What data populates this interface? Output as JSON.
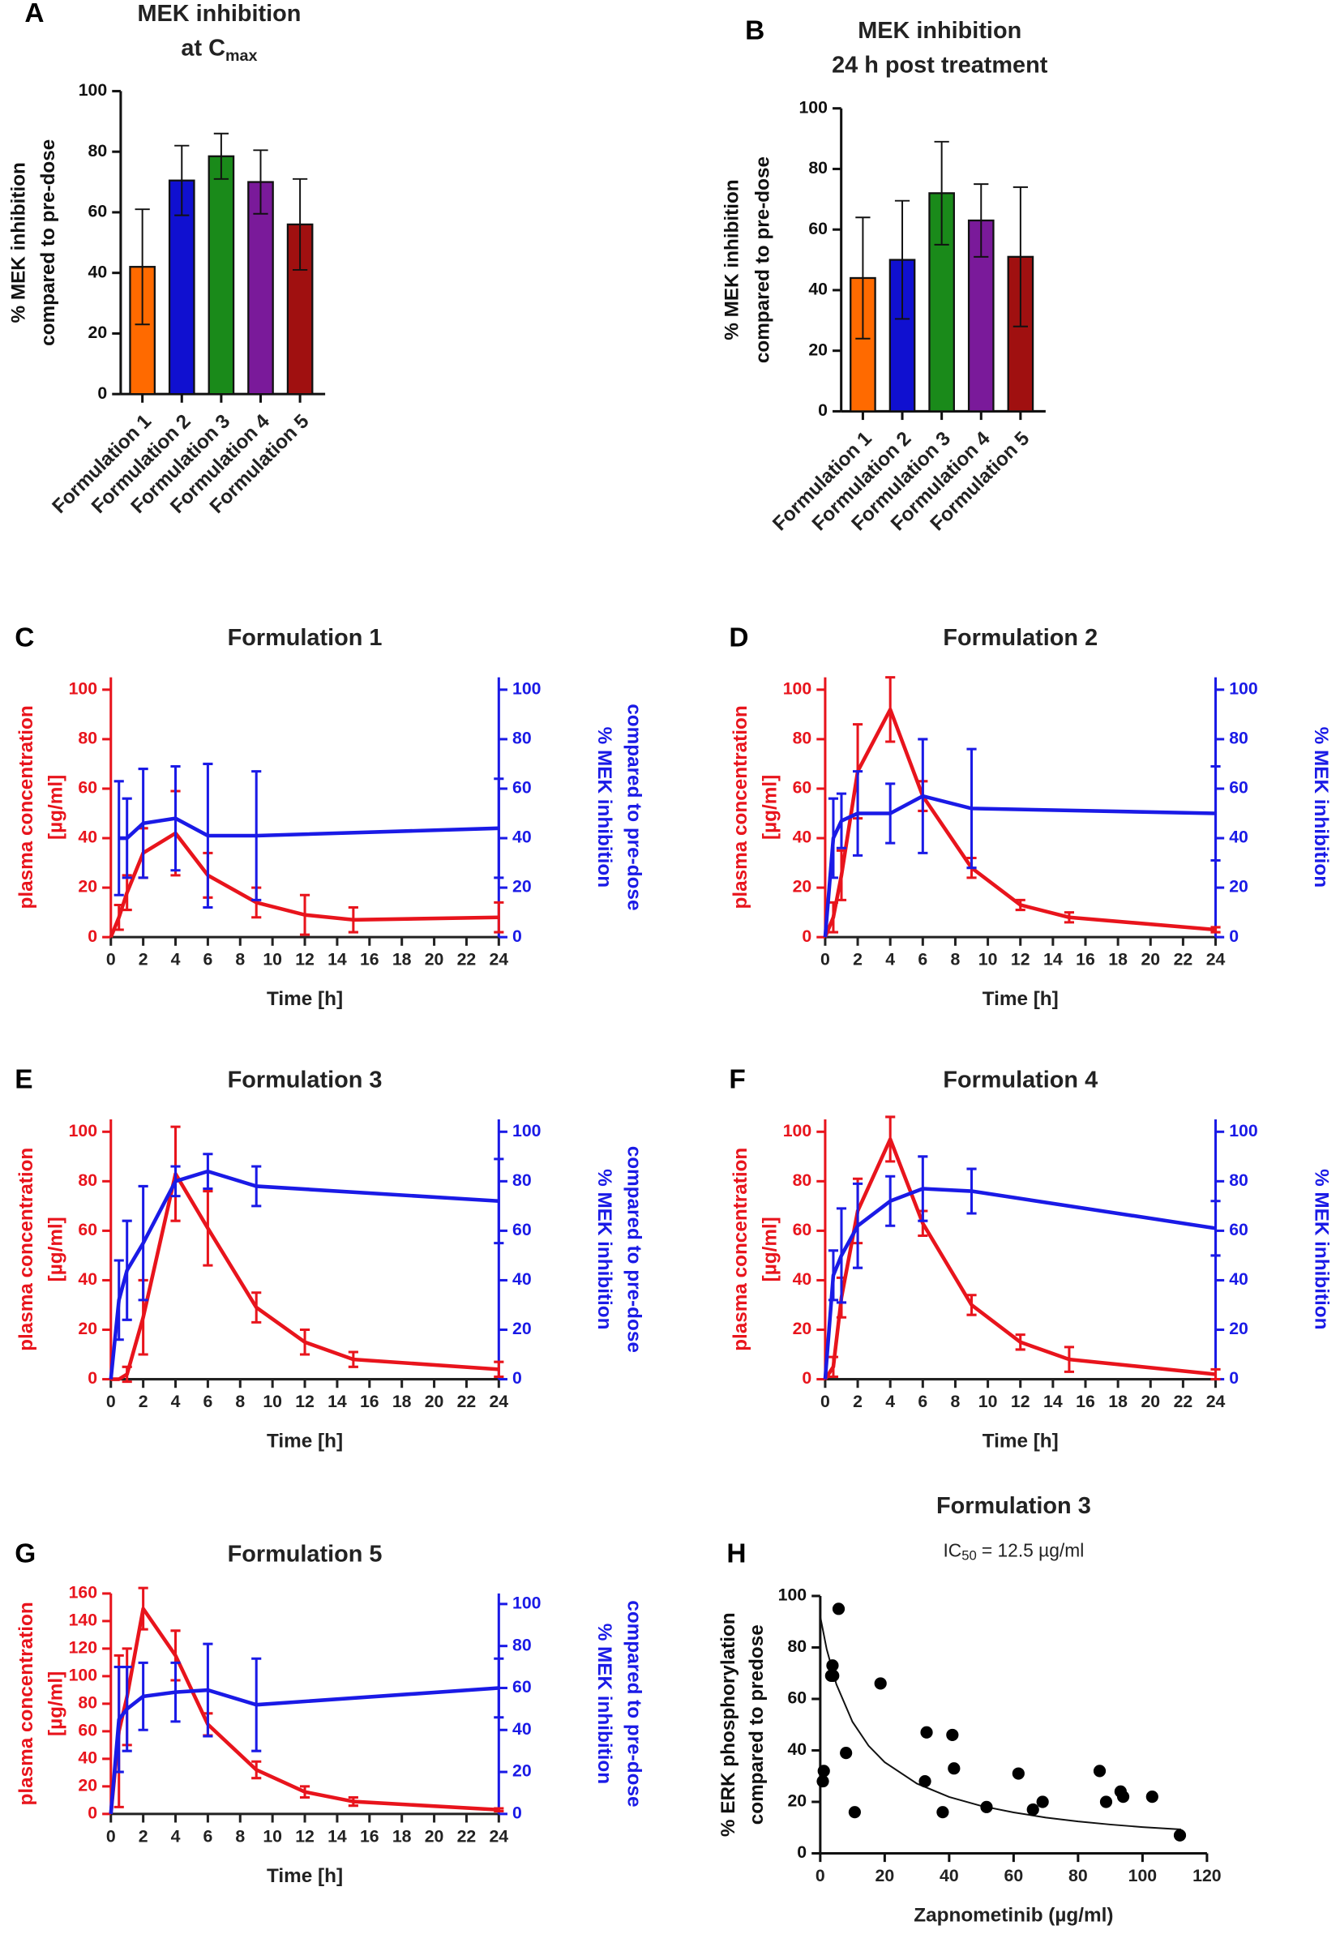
{
  "chart_data": [
    {
      "type": "bar",
      "panel": "A",
      "title": [
        "MEK inhibition",
        "at C"
      ],
      "title_sub": "max",
      "ylabel": [
        "% MEK inhibition",
        "compared to pre-dose"
      ],
      "categories": [
        "Formulation 1",
        "Formulation 2",
        "Formulation 3",
        "Formulation 4",
        "Formulation 5"
      ],
      "values": [
        42,
        70.5,
        78.5,
        70,
        56
      ],
      "errors": [
        19,
        11.5,
        7.5,
        10.5,
        15
      ],
      "colors": [
        "#ff6a00",
        "#1010d0",
        "#1a8a1a",
        "#7a1a9a",
        "#a01010"
      ],
      "ylim": [
        0,
        100
      ],
      "yticks": [
        0,
        20,
        40,
        60,
        80,
        100
      ]
    },
    {
      "type": "bar",
      "panel": "B",
      "title": [
        "MEK inhibition",
        "24 h post treatment"
      ],
      "ylabel": [
        "% MEK inhibition",
        "compared to pre-dose"
      ],
      "categories": [
        "Formulation 1",
        "Formulation 2",
        "Formulation 3",
        "Formulation 4",
        "Formulation 5"
      ],
      "values": [
        44,
        50,
        72,
        63,
        51
      ],
      "errors": [
        20,
        19.5,
        17,
        12,
        23
      ],
      "colors": [
        "#ff6a00",
        "#1010d0",
        "#1a8a1a",
        "#7a1a9a",
        "#a01010"
      ],
      "ylim": [
        0,
        100
      ],
      "yticks": [
        0,
        20,
        40,
        60,
        80,
        100
      ]
    },
    {
      "type": "line",
      "panel": "C",
      "title": "Formulation 1",
      "xlabel": "Time [h]",
      "ylabel": [
        "plasma concentration",
        "[µg/ml]"
      ],
      "y2label": [
        "% MEK inhibition",
        "compared to pre-dose"
      ],
      "xlim": [
        0,
        24
      ],
      "xticks": [
        0,
        2,
        4,
        6,
        8,
        10,
        12,
        14,
        16,
        18,
        20,
        22,
        24
      ],
      "ylim": [
        0,
        105
      ],
      "yticks": [
        0,
        20,
        40,
        60,
        80,
        100
      ],
      "y2lim": [
        0,
        105
      ],
      "y2ticks": [
        0,
        20,
        40,
        60,
        80,
        100
      ],
      "series": [
        {
          "color": "#e8141c",
          "x": [
            0,
            0.5,
            1,
            2,
            4,
            6,
            9,
            12,
            15,
            24
          ],
          "values": [
            0,
            8,
            18,
            34,
            42,
            25,
            14,
            9,
            7,
            8
          ],
          "errors": [
            null,
            5,
            7,
            10,
            17,
            9,
            6,
            8,
            5,
            6
          ]
        },
        {
          "color": "#1a1ae6",
          "axis": "y2",
          "x": [
            0.5,
            1,
            2,
            4,
            6,
            9,
            24
          ],
          "values": [
            40,
            40,
            46,
            48,
            41,
            41,
            44
          ],
          "errors": [
            23,
            16,
            22,
            21,
            29,
            26,
            20
          ]
        }
      ]
    },
    {
      "type": "line",
      "panel": "D",
      "title": "Formulation 2",
      "xlabel": "Time [h]",
      "ylabel": [
        "plasma concentration",
        "[µg/ml]"
      ],
      "y2label": [
        "% MEK inhibition",
        "compared to pre-dose"
      ],
      "xlim": [
        0,
        24
      ],
      "xticks": [
        0,
        2,
        4,
        6,
        8,
        10,
        12,
        14,
        16,
        18,
        20,
        22,
        24
      ],
      "ylim": [
        0,
        105
      ],
      "yticks": [
        0,
        20,
        40,
        60,
        80,
        100
      ],
      "y2lim": [
        0,
        105
      ],
      "y2ticks": [
        0,
        20,
        40,
        60,
        80,
        100
      ],
      "series": [
        {
          "color": "#e8141c",
          "x": [
            0,
            0.5,
            1,
            2,
            4,
            6,
            9,
            12,
            15,
            24
          ],
          "values": [
            0,
            8,
            25,
            67,
            92,
            57,
            28,
            13,
            8,
            3
          ],
          "errors": [
            null,
            6,
            10,
            19,
            13,
            6,
            4,
            2,
            2,
            1
          ]
        },
        {
          "color": "#1a1ae6",
          "axis": "y2",
          "x": [
            0,
            0.5,
            1,
            2,
            4,
            6,
            9,
            24
          ],
          "values": [
            0,
            40,
            47,
            50,
            50,
            57,
            52,
            50
          ],
          "errors": [
            null,
            16,
            11,
            17,
            12,
            23,
            24,
            19
          ]
        }
      ]
    },
    {
      "type": "line",
      "panel": "E",
      "title": "Formulation 3",
      "xlabel": "Time [h]",
      "ylabel": [
        "plasma concentration",
        "[µg/ml]"
      ],
      "y2label": [
        "% MEK inhibition",
        "compared to pre-dose"
      ],
      "xlim": [
        0,
        24
      ],
      "xticks": [
        0,
        2,
        4,
        6,
        8,
        10,
        12,
        14,
        16,
        18,
        20,
        22,
        24
      ],
      "ylim": [
        0,
        105
      ],
      "yticks": [
        0,
        20,
        40,
        60,
        80,
        100
      ],
      "y2lim": [
        0,
        105
      ],
      "y2ticks": [
        0,
        20,
        40,
        60,
        80,
        100
      ],
      "series": [
        {
          "color": "#e8141c",
          "x": [
            0,
            0.5,
            1,
            2,
            4,
            6,
            9,
            12,
            15,
            24
          ],
          "values": [
            0,
            0,
            2,
            25,
            83,
            61,
            29,
            15,
            8,
            4
          ],
          "errors": [
            null,
            null,
            3,
            15,
            19,
            15,
            6,
            5,
            3,
            3
          ]
        },
        {
          "color": "#1a1ae6",
          "axis": "y2",
          "x": [
            0,
            0.5,
            1,
            2,
            4,
            6,
            9,
            24
          ],
          "values": [
            0,
            32,
            44,
            55,
            80,
            84,
            78,
            72
          ],
          "errors": [
            null,
            16,
            20,
            23,
            6,
            7,
            8,
            17
          ]
        }
      ]
    },
    {
      "type": "line",
      "panel": "F",
      "title": "Formulation 4",
      "xlabel": "Time [h]",
      "ylabel": [
        "plasma concentration",
        "[µg/ml]"
      ],
      "y2label": [
        "% MEK inhibition",
        "compared to pre-dose"
      ],
      "xlim": [
        0,
        24
      ],
      "xticks": [
        0,
        2,
        4,
        6,
        8,
        10,
        12,
        14,
        16,
        18,
        20,
        22,
        24
      ],
      "ylim": [
        0,
        105
      ],
      "yticks": [
        0,
        20,
        40,
        60,
        80,
        100
      ],
      "y2lim": [
        0,
        105
      ],
      "y2ticks": [
        0,
        20,
        40,
        60,
        80,
        100
      ],
      "series": [
        {
          "color": "#e8141c",
          "x": [
            0,
            0.5,
            1,
            2,
            4,
            6,
            9,
            12,
            15,
            24
          ],
          "values": [
            0,
            5,
            33,
            68,
            97,
            63,
            30,
            15,
            8,
            2
          ],
          "errors": [
            null,
            4,
            8,
            13,
            9,
            5,
            4,
            3,
            5,
            2
          ]
        },
        {
          "color": "#1a1ae6",
          "axis": "y2",
          "x": [
            0,
            0.5,
            1,
            2,
            4,
            6,
            9,
            24
          ],
          "values": [
            0,
            42,
            50,
            62,
            72,
            77,
            76,
            61
          ],
          "errors": [
            null,
            10,
            19,
            17,
            10,
            13,
            9,
            11
          ]
        }
      ]
    },
    {
      "type": "line",
      "panel": "G",
      "title": "Formulation 5",
      "xlabel": "Time [h]",
      "ylabel": [
        "plasma concentration",
        "[µg/ml]"
      ],
      "y2label": [
        "% MEK inhibition",
        "compared to pre-dose"
      ],
      "xlim": [
        0,
        24
      ],
      "xticks": [
        0,
        2,
        4,
        6,
        8,
        10,
        12,
        14,
        16,
        18,
        20,
        22,
        24
      ],
      "ylim": [
        0,
        160
      ],
      "yticks": [
        0,
        20,
        40,
        60,
        80,
        100,
        120,
        140,
        160
      ],
      "y2lim": [
        0,
        105
      ],
      "y2ticks": [
        0,
        20,
        40,
        60,
        80,
        100
      ],
      "series": [
        {
          "color": "#e8141c",
          "x": [
            0,
            0.5,
            1,
            2,
            4,
            6,
            9,
            12,
            15,
            24
          ],
          "values": [
            0,
            60,
            85,
            149,
            115,
            65,
            32,
            16,
            9,
            3
          ],
          "errors": [
            null,
            55,
            35,
            15,
            18,
            8,
            6,
            4,
            3,
            1
          ]
        },
        {
          "color": "#1a1ae6",
          "axis": "y2",
          "x": [
            0,
            0.5,
            1,
            2,
            4,
            6,
            9,
            24
          ],
          "values": [
            0,
            45,
            50,
            56,
            58,
            59,
            52,
            60
          ],
          "errors": [
            null,
            25,
            20,
            16,
            14,
            22,
            22,
            14
          ]
        }
      ]
    },
    {
      "type": "scatter",
      "panel": "H",
      "title": "Formulation 3",
      "annotation": {
        "text": "IC",
        "sub": "50",
        "rest": "= 12.5 µg/ml"
      },
      "xlabel": "Zapnometinib (µg/ml)",
      "ylabel": [
        "% ERK phosphorylation",
        "compared to predose"
      ],
      "x": [
        0.8,
        1.1,
        3.4,
        3.8,
        4,
        5.7,
        8,
        10.7,
        18.7,
        33,
        32.5,
        38,
        41,
        41.5,
        51.6,
        61.5,
        66,
        69,
        86.7,
        88.7,
        93.2,
        94,
        103,
        111.6
      ],
      "values": [
        28,
        32,
        69,
        73,
        69,
        95,
        39,
        16,
        66,
        47,
        28,
        16,
        46,
        33,
        18,
        31,
        17,
        20,
        32,
        20,
        24,
        22,
        22,
        7
      ],
      "color": "#000000",
      "fit": {
        "x": [
          0,
          2,
          5,
          10,
          15,
          20,
          30,
          40,
          50,
          60,
          70,
          80,
          90,
          100,
          112
        ],
        "y": [
          92,
          79.3,
          65.7,
          51.1,
          41.8,
          35.4,
          27.1,
          21.9,
          18.4,
          15.9,
          13.9,
          12.4,
          11.2,
          10.2,
          9.3
        ]
      },
      "xlim": [
        0,
        120
      ],
      "xticks": [
        0,
        20,
        40,
        60,
        80,
        100,
        120
      ],
      "ylim": [
        0,
        100
      ],
      "yticks": [
        0,
        20,
        40,
        60,
        80,
        100
      ]
    }
  ]
}
